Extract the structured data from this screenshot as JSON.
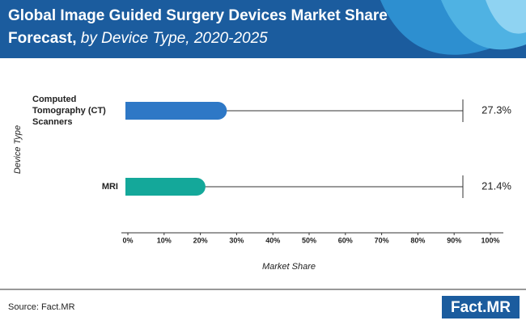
{
  "chart_data": {
    "type": "bar",
    "orientation": "horizontal",
    "title": "Global Image Guided Surgery Devices Market Share",
    "title_line2": "Forecast,",
    "subtitle": "by Device Type, 2020-2025",
    "categories": [
      "Computed Tomography (CT) Scanners",
      "MRI"
    ],
    "values": [
      27.3,
      21.4
    ],
    "value_labels": [
      "27.3%",
      "21.4%"
    ],
    "colors": [
      "#2e78c6",
      "#14a89a"
    ],
    "xlim": [
      0,
      100
    ],
    "xticks": [
      {
        "value": 0,
        "label": "0%"
      },
      {
        "value": 10,
        "label": "10%"
      },
      {
        "value": 20,
        "label": "20%"
      },
      {
        "value": 30,
        "label": "30%"
      },
      {
        "value": 40,
        "label": "40%"
      },
      {
        "value": 50,
        "label": "50%"
      },
      {
        "value": 60,
        "label": "60%"
      },
      {
        "value": 70,
        "label": "70%"
      },
      {
        "value": 80,
        "label": "80%"
      },
      {
        "value": 90,
        "label": "90%"
      },
      {
        "value": 100,
        "label": "100%"
      }
    ],
    "x_label": "Market Share",
    "y_label": "Device Type",
    "source": "Source: Fact.MR",
    "logo": "Fact.MR"
  }
}
